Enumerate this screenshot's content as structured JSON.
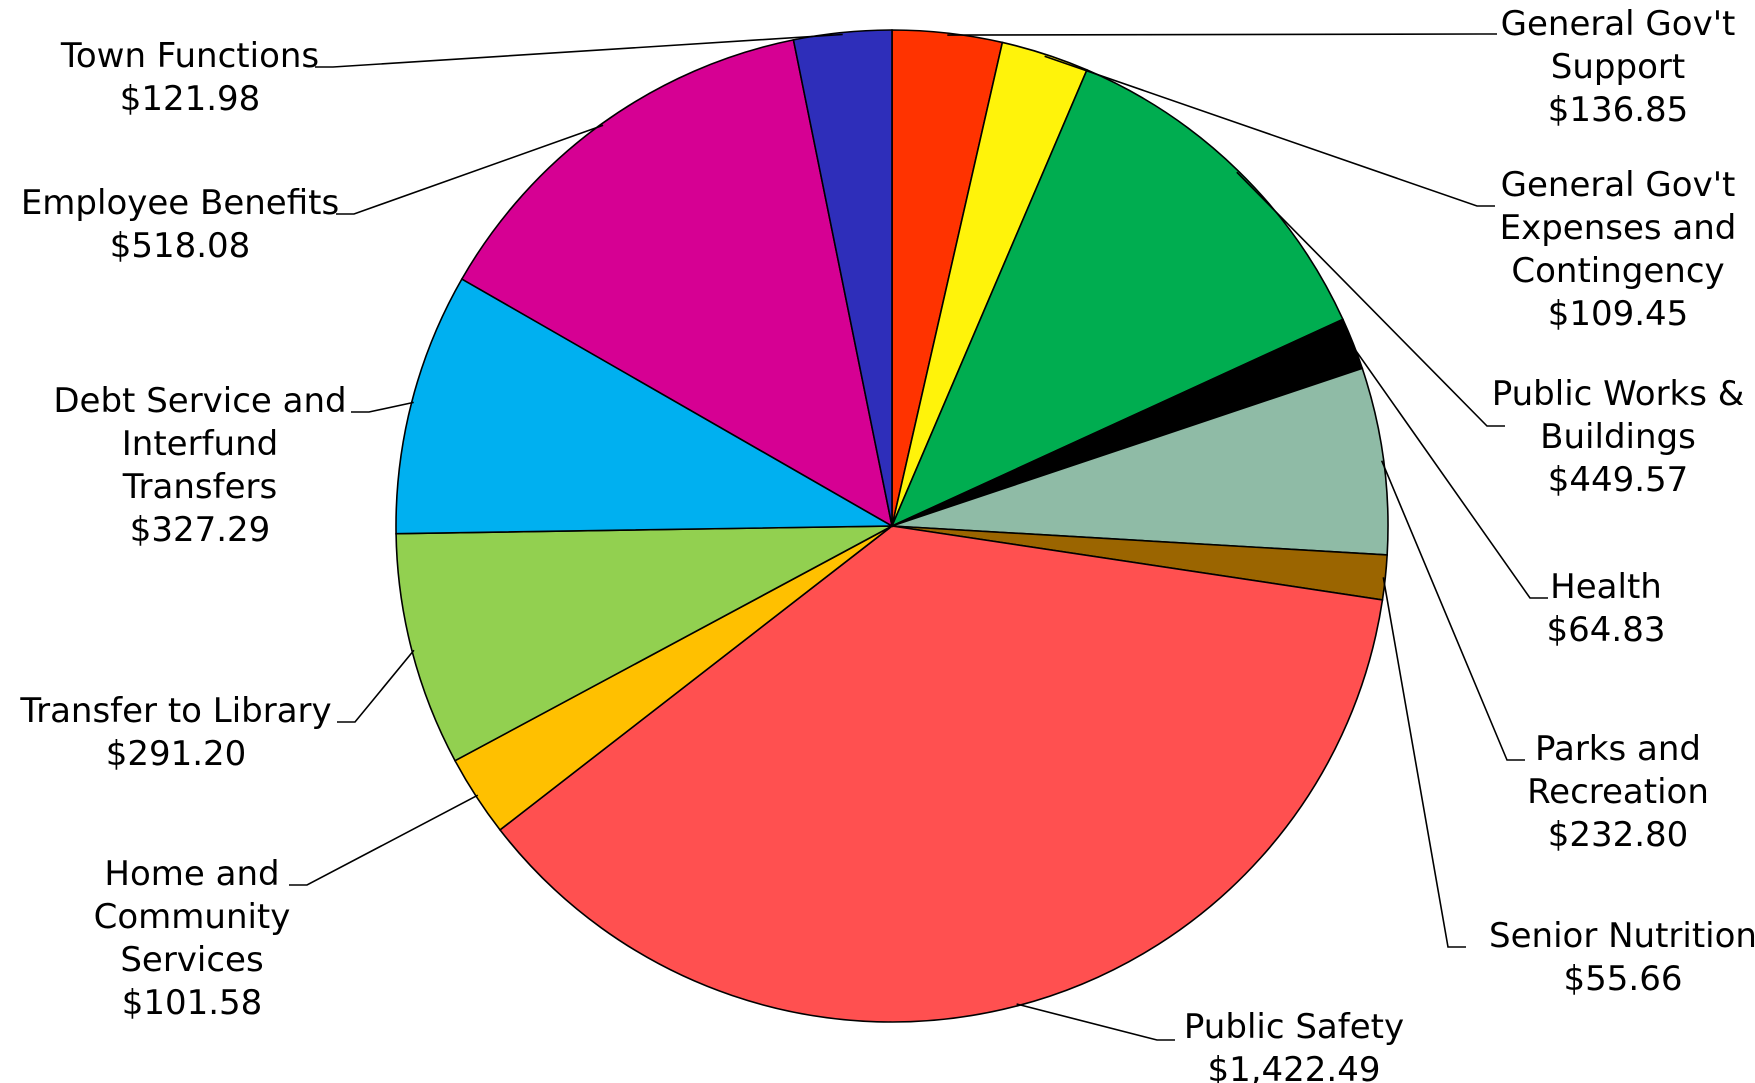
{
  "chart_data": {
    "type": "pie",
    "title": "",
    "slices": [
      {
        "label": [
          "General Gov't",
          "Support"
        ],
        "value_text": "$136.85",
        "value": 136.85,
        "color": "#ff3300"
      },
      {
        "label": [
          "General Gov't",
          "Expenses and",
          "Contingency"
        ],
        "value_text": "$109.45",
        "value": 109.45,
        "color": "#fff30a"
      },
      {
        "label": [
          "Public Works &",
          "Buildings"
        ],
        "value_text": "$449.57",
        "value": 449.57,
        "color": "#00ad50"
      },
      {
        "label": [
          "Health"
        ],
        "value_text": "$64.83",
        "value": 64.83,
        "color": "#000000"
      },
      {
        "label": [
          "Parks and",
          "Recreation"
        ],
        "value_text": "$232.80",
        "value": 232.8,
        "color": "#8fbba6"
      },
      {
        "label": [
          "Senior Nutrition"
        ],
        "value_text": "$55.66",
        "value": 55.66,
        "color": "#9b6500"
      },
      {
        "label": [
          "Public Safety"
        ],
        "value_text": "$1,422.49",
        "value": 1422.49,
        "color": "#ff5050"
      },
      {
        "label": [
          "Home and",
          "Community",
          "Services"
        ],
        "value_text": "$101.58",
        "value": 101.58,
        "color": "#ffc000"
      },
      {
        "label": [
          "Transfer to Library"
        ],
        "value_text": "$291.20",
        "value": 291.2,
        "color": "#92d050"
      },
      {
        "label": [
          "Debt Service and",
          "Interfund",
          "Transfers"
        ],
        "value_text": "$327.29",
        "value": 327.29,
        "color": "#00b0f0"
      },
      {
        "label": [
          "Employee Benefits"
        ],
        "value_text": "$518.08",
        "value": 518.08,
        "color": "#d60093"
      },
      {
        "label": [
          "Town Functions"
        ],
        "value_text": "$121.98",
        "value": 121.98,
        "color": "#2e2eba"
      }
    ]
  }
}
